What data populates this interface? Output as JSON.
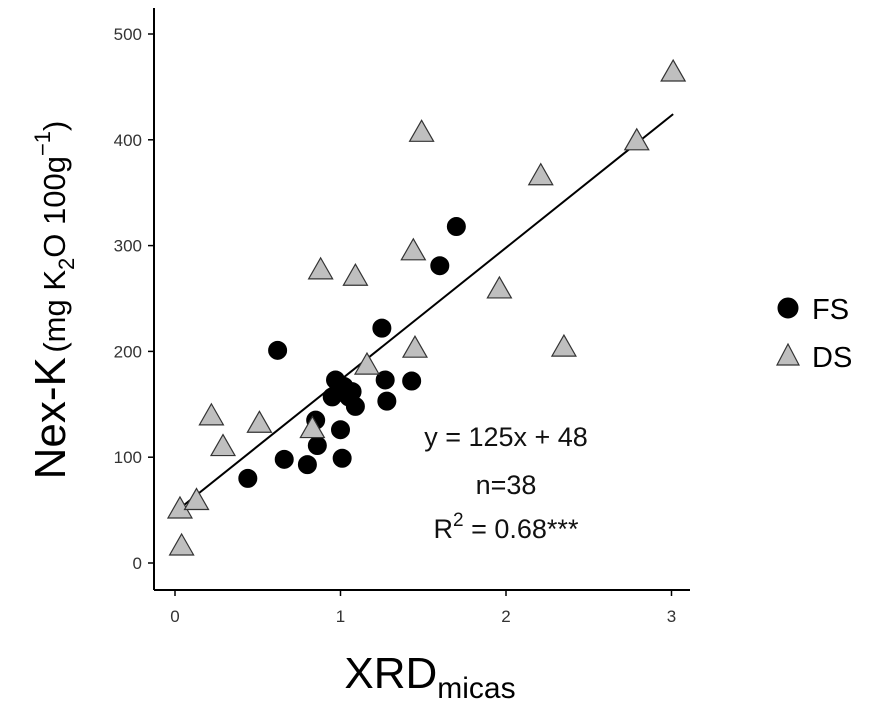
{
  "chart_data": {
    "type": "scatter",
    "xlabel": "XRD",
    "xlabel_sub": "micas",
    "ylabel_main": "Nex-K",
    "ylabel_units": {
      "pre": "(mg K",
      "sub": "2",
      "mid": "O 100g",
      "sup": "−1",
      "post": ")"
    },
    "xlim": [
      -0.05,
      3.1
    ],
    "ylim": [
      -20,
      520
    ],
    "x_ticks": [
      0,
      1,
      2,
      3
    ],
    "y_ticks": [
      0,
      100,
      200,
      300,
      400,
      500
    ],
    "grid": false,
    "legend_position": "right",
    "series": [
      {
        "name": "FS",
        "marker": "circle",
        "color": "#000000",
        "points": [
          [
            0.44,
            80
          ],
          [
            0.62,
            201
          ],
          [
            0.66,
            98
          ],
          [
            0.8,
            93
          ],
          [
            0.85,
            135
          ],
          [
            0.86,
            111
          ],
          [
            0.95,
            157
          ],
          [
            0.97,
            173
          ],
          [
            1.0,
            126
          ],
          [
            1.01,
            99
          ],
          [
            1.02,
            167
          ],
          [
            1.05,
            157
          ],
          [
            1.07,
            162
          ],
          [
            1.09,
            148
          ],
          [
            1.25,
            222
          ],
          [
            1.27,
            173
          ],
          [
            1.28,
            153
          ],
          [
            1.43,
            172
          ],
          [
            1.6,
            281
          ],
          [
            1.7,
            318
          ]
        ]
      },
      {
        "name": "DS",
        "marker": "triangle",
        "color": "#bfbfbf",
        "points": [
          [
            0.03,
            52
          ],
          [
            0.04,
            17
          ],
          [
            0.13,
            60
          ],
          [
            0.22,
            140
          ],
          [
            0.29,
            111
          ],
          [
            0.51,
            133
          ],
          [
            0.83,
            128
          ],
          [
            0.88,
            278
          ],
          [
            1.09,
            272
          ],
          [
            1.16,
            188
          ],
          [
            1.44,
            296
          ],
          [
            1.45,
            204
          ],
          [
            1.49,
            408
          ],
          [
            1.96,
            260
          ],
          [
            2.21,
            367
          ],
          [
            2.35,
            205
          ],
          [
            2.79,
            400
          ],
          [
            3.01,
            465
          ]
        ]
      }
    ],
    "fit_line": {
      "slope": 125,
      "intercept": 48,
      "x_range": [
        0.03,
        3.01
      ]
    },
    "annotations": {
      "equation": "y = 125x + 48",
      "n": "n=38",
      "r2_prefix": "R",
      "r2_sup": "2",
      "r2_suffix": " = 0.68***"
    }
  }
}
